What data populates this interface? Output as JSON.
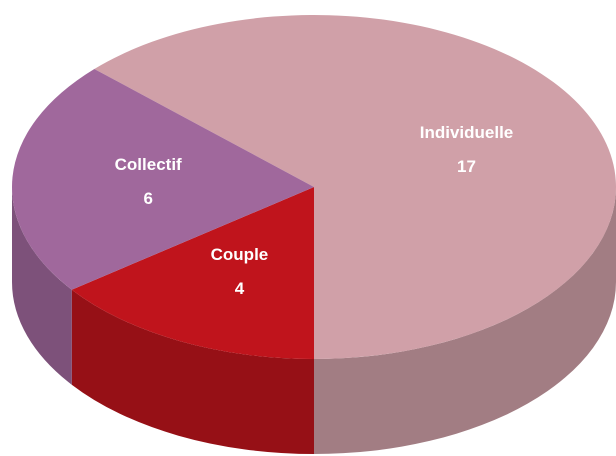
{
  "chart_data": {
    "type": "pie",
    "categories": [
      "Individuelle",
      "Couple",
      "Collectif"
    ],
    "values": [
      17,
      4,
      6
    ],
    "colors": [
      "#d0a0a8",
      "#c0141c",
      "#a0689c"
    ]
  }
}
